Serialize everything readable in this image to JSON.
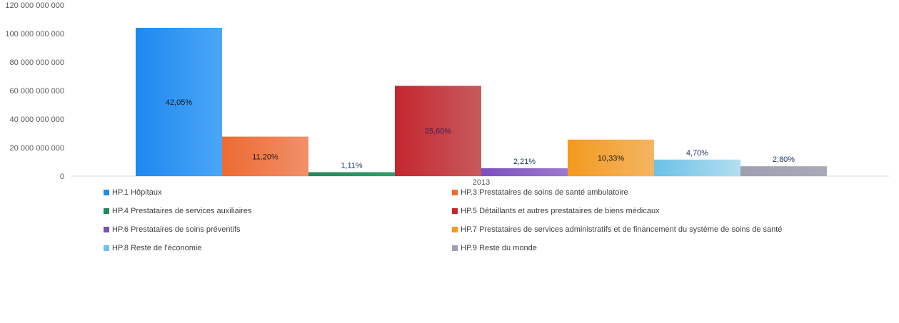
{
  "chart_data": {
    "type": "bar",
    "categories": [
      "2013"
    ],
    "yticks": [
      "0",
      "20 000 000 000",
      "40 000 000 000",
      "60 000 000 000",
      "80 000 000 000",
      "100 000 000 000",
      "120 000 000 000"
    ],
    "ylim": [
      0,
      120000000000
    ],
    "grid": false,
    "legend_position": "bottom",
    "series": [
      {
        "name": "HP.1 Hôpitaux",
        "value": 104000000000,
        "label": "42,05%",
        "color": "#1e88f0",
        "color2": "#4aa6f7",
        "label_color": "#1a1a1a"
      },
      {
        "name": "HP.3 Prestataires de soins de santé ambulatoire",
        "value": 27700000000,
        "label": "11,20%",
        "color": "#ee6a32",
        "color2": "#f1906a",
        "label_color": "#1a1a1a"
      },
      {
        "name": "HP.4 Prestataires de services auxiliaires",
        "value": 2750000000,
        "label": "1,11%",
        "color": "#24875a",
        "color2": "#2e9e6b",
        "label_color": "#1f3864"
      },
      {
        "name": "HP.5 Détaillants et autres prestataires de biens médicaux",
        "value": 63300000000,
        "label": "25,60%",
        "color": "#c4262e",
        "color2": "#c85a5d",
        "label_color": "#3a1a5a"
      },
      {
        "name": "HP.6 Prestataires de soins préventifs",
        "value": 5500000000,
        "label": "2,21%",
        "color": "#7b4fbe",
        "color2": "#9d78cc",
        "label_color": "#1f3864"
      },
      {
        "name": "HP.7 Prestataires de services administratifs et de financement du système de soins de santé",
        "value": 25600000000,
        "label": "10,33%",
        "color": "#f39a1f",
        "color2": "#f4b563",
        "label_color": "#1a1a1a"
      },
      {
        "name": "HP.8 Reste de l'économie",
        "value": 11600000000,
        "label": "4,70%",
        "color": "#6cc2e6",
        "color2": "#b3def0",
        "label_color": "#1f3864"
      },
      {
        "name": "HP.9 Reste du monde",
        "value": 6900000000,
        "label": "2,80%",
        "color": "#9e9fb0",
        "color2": "#a9aab8",
        "label_color": "#1f3864"
      }
    ]
  }
}
